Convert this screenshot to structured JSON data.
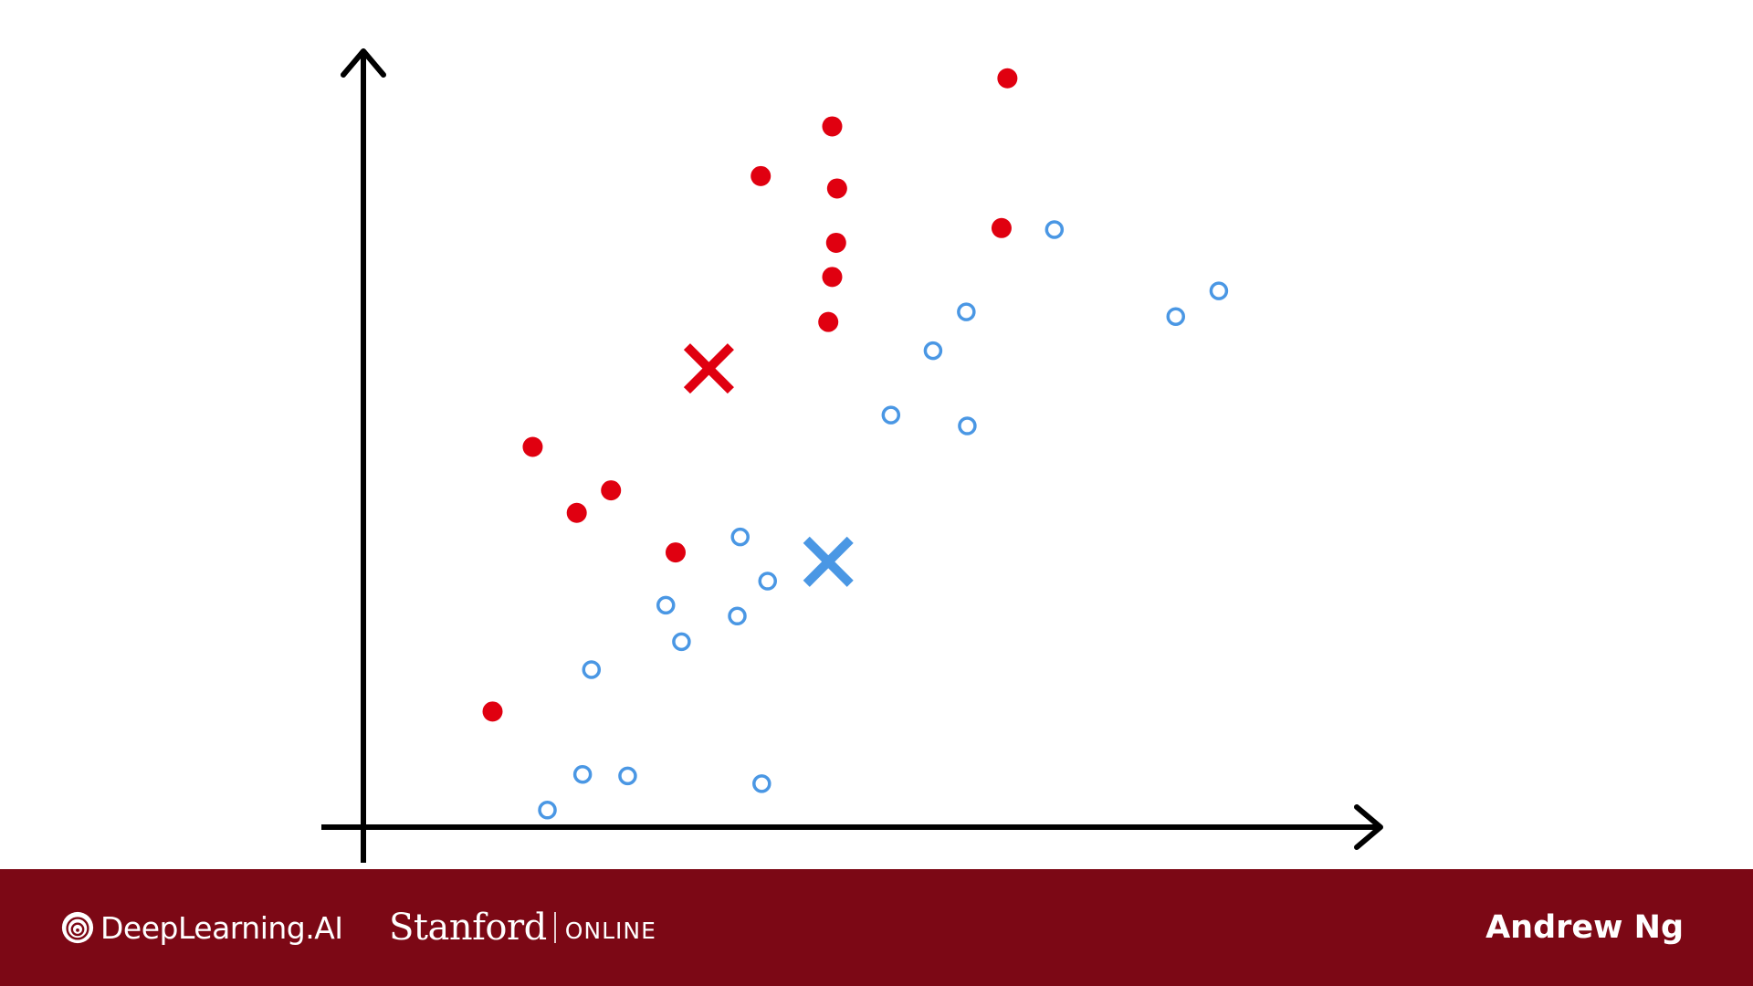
{
  "chart_data": {
    "type": "scatter",
    "title": "",
    "xlabel": "",
    "ylabel": "",
    "xlim": [
      0,
      100
    ],
    "ylim": [
      0,
      100
    ],
    "grid": false,
    "series": [
      {
        "color": "#e00010",
        "marker": "filled-circle",
        "points": [
          [
            65.8,
            96.5
          ],
          [
            47.9,
            90.3
          ],
          [
            40.6,
            83.9
          ],
          [
            48.4,
            82.3
          ],
          [
            65.2,
            77.2
          ],
          [
            48.3,
            75.3
          ],
          [
            47.9,
            70.9
          ],
          [
            47.5,
            65.1
          ],
          [
            17.3,
            49.0
          ],
          [
            25.3,
            43.4
          ],
          [
            21.8,
            40.5
          ],
          [
            31.9,
            35.4
          ],
          [
            13.2,
            14.9
          ]
        ]
      },
      {
        "color": "#4a97e4",
        "marker": "hollow-circle",
        "points": [
          [
            70.6,
            77.0
          ],
          [
            87.4,
            69.1
          ],
          [
            83.0,
            65.8
          ],
          [
            61.6,
            66.4
          ],
          [
            58.2,
            61.4
          ],
          [
            53.9,
            53.1
          ],
          [
            61.7,
            51.7
          ],
          [
            38.5,
            37.4
          ],
          [
            41.3,
            31.7
          ],
          [
            30.9,
            28.6
          ],
          [
            38.2,
            27.2
          ],
          [
            32.5,
            23.9
          ],
          [
            23.3,
            20.3
          ],
          [
            22.4,
            6.8
          ],
          [
            27.0,
            6.6
          ],
          [
            40.7,
            5.6
          ],
          [
            18.8,
            2.2
          ]
        ]
      },
      {
        "color": "#e00010",
        "marker": "cross",
        "points": [
          [
            35.3,
            59.1
          ]
        ]
      },
      {
        "color": "#4a97e4",
        "marker": "cross",
        "points": [
          [
            47.5,
            34.2
          ]
        ]
      }
    ]
  },
  "footer": {
    "brand_deeplearning": "DeepLearning.AI",
    "brand_stanford": "Stanford",
    "brand_online": "ONLINE",
    "presenter": "Andrew Ng",
    "color": "#7c0815"
  }
}
